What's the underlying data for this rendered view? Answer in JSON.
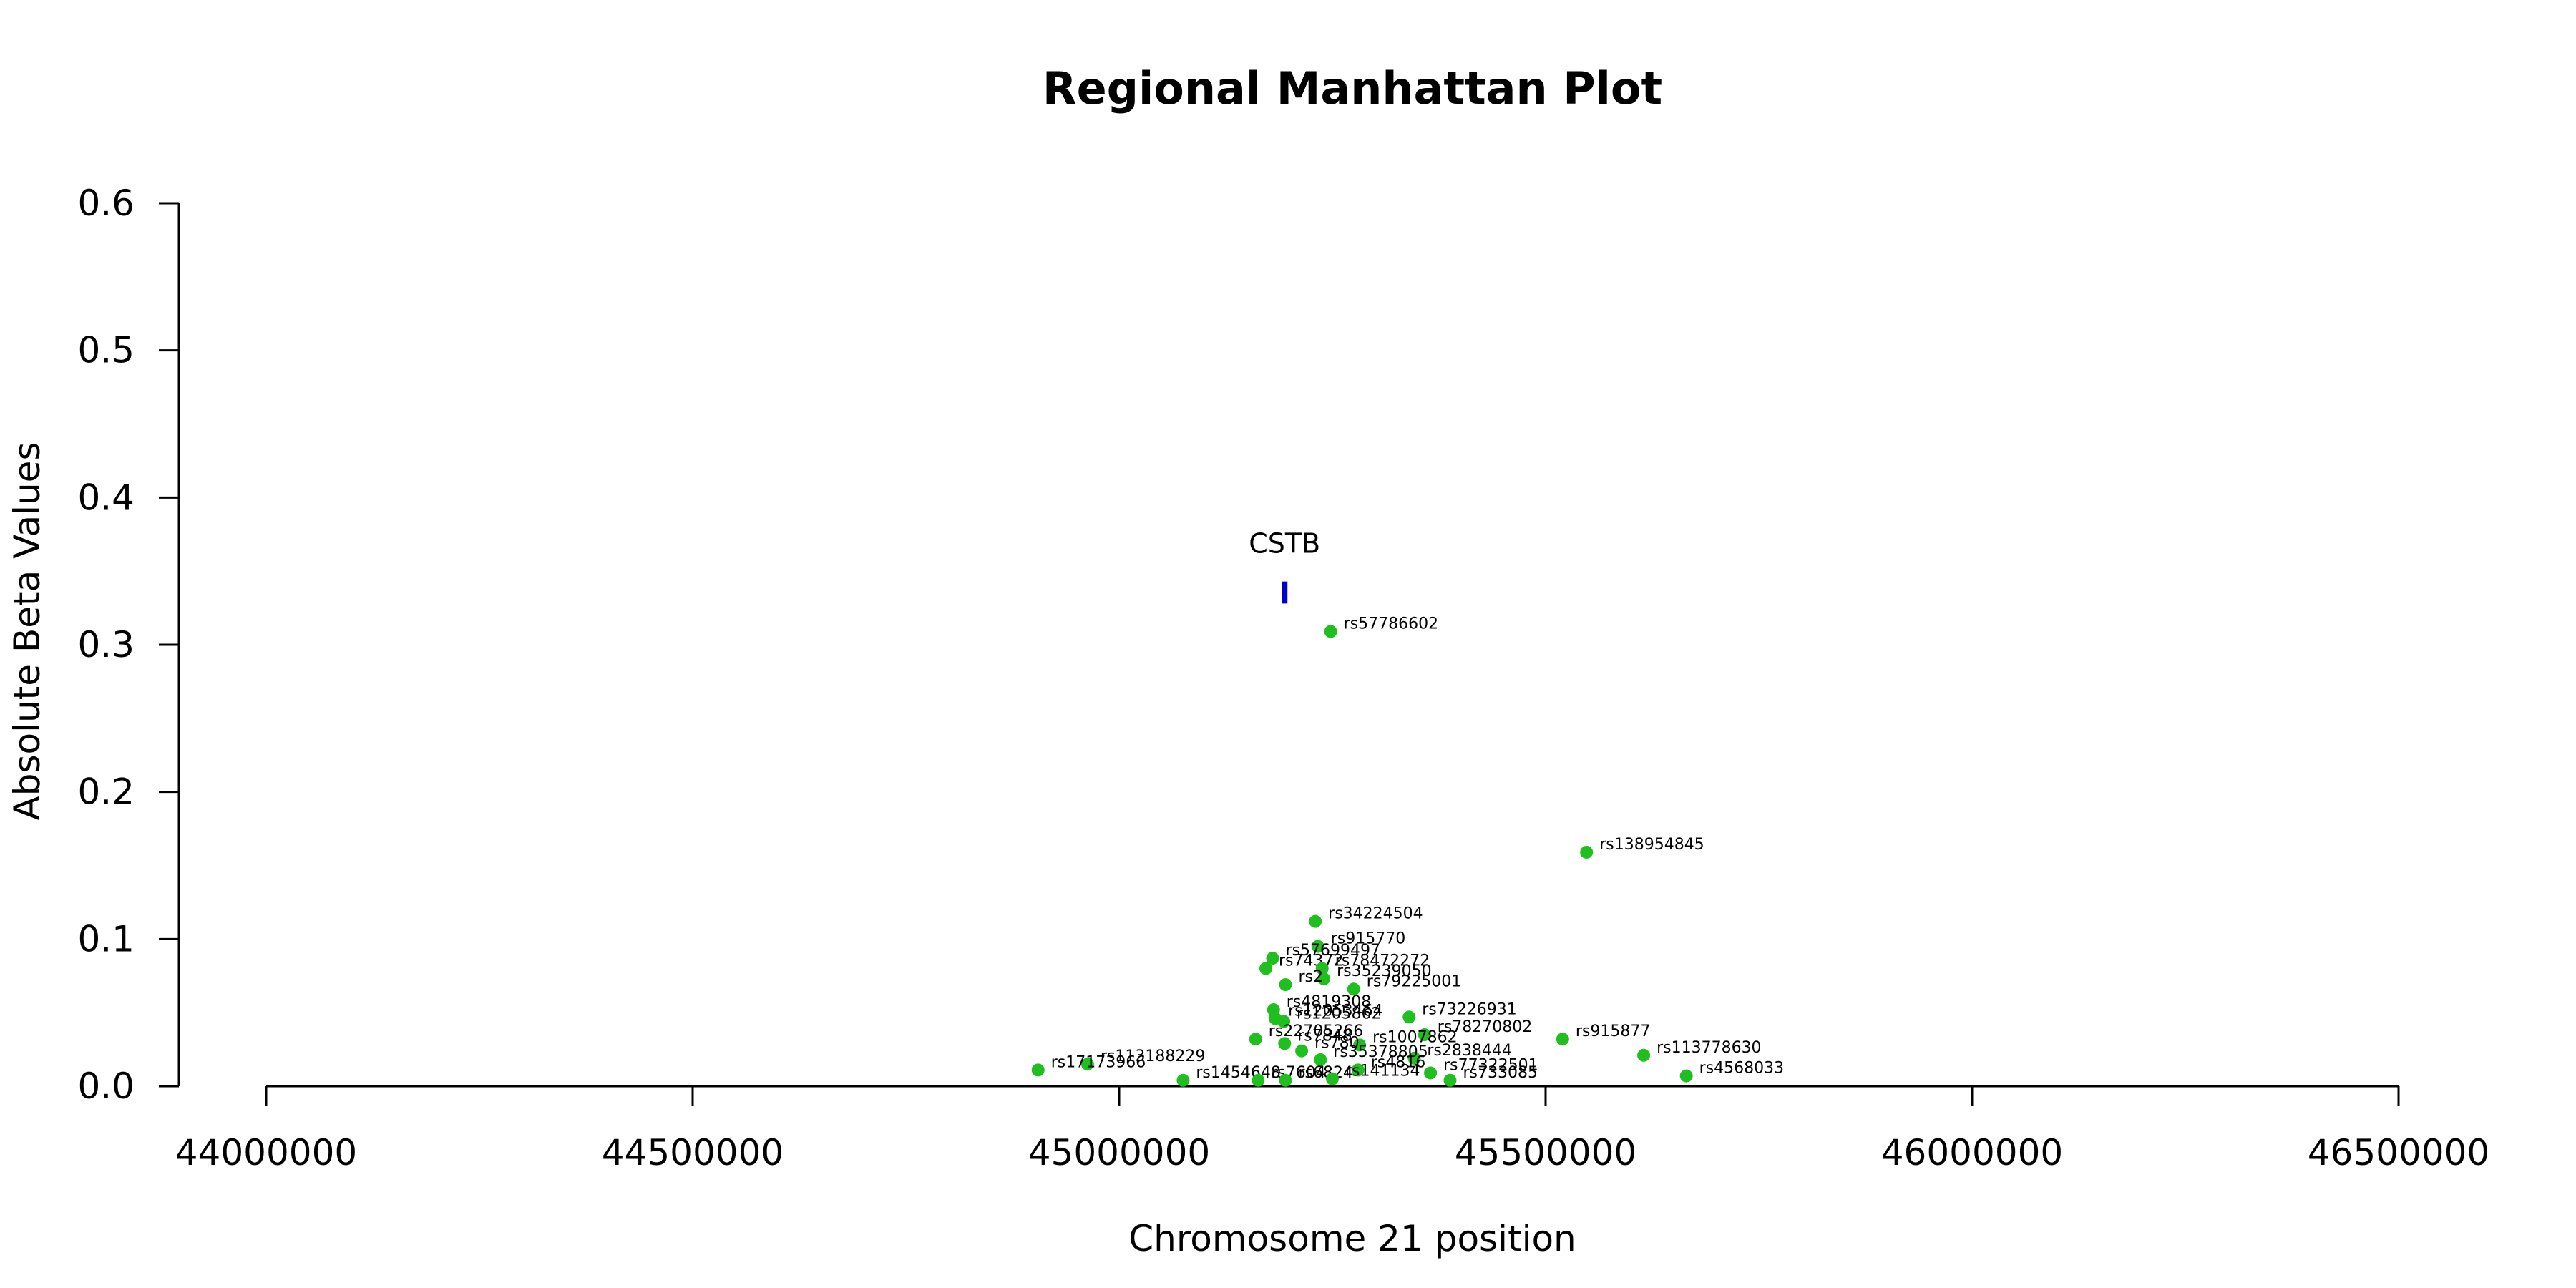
{
  "chart_data": {
    "type": "scatter",
    "title": "Regional Manhattan Plot",
    "xlabel": "Chromosome 21 position",
    "ylabel": "Absolute Beta Values",
    "xlim": [
      44000000,
      46500000
    ],
    "ylim": [
      0,
      0.6
    ],
    "x_ticks": [
      "44000000",
      "44500000",
      "45000000",
      "45500000",
      "46000000",
      "46500000"
    ],
    "y_ticks": [
      "0.0",
      "0.1",
      "0.2",
      "0.3",
      "0.4",
      "0.5",
      "0.6"
    ],
    "point_color": "#1fbf1f",
    "gene_color": "#0000cc",
    "grid": false,
    "gene": {
      "name": "CSTB",
      "position": 45194000,
      "y_bottom": 0.328,
      "y_top": 0.343
    },
    "points": [
      {
        "label": "rs57786602",
        "x": 45248000,
        "y": 0.309
      },
      {
        "label": "rs138954845",
        "x": 45548000,
        "y": 0.159
      },
      {
        "label": "rs34224504",
        "x": 45230000,
        "y": 0.112
      },
      {
        "label": "rs915770",
        "x": 45233000,
        "y": 0.095
      },
      {
        "label": "rs57699497",
        "x": 45180000,
        "y": 0.087
      },
      {
        "label": "rs74372",
        "x": 45172000,
        "y": 0.08
      },
      {
        "label": "rs78472272",
        "x": 45238000,
        "y": 0.08
      },
      {
        "label": "rs35239050",
        "x": 45240000,
        "y": 0.073
      },
      {
        "label": "rs2",
        "x": 45195000,
        "y": 0.069
      },
      {
        "label": "rs79225001",
        "x": 45275000,
        "y": 0.066
      },
      {
        "label": "rs4819308",
        "x": 45181000,
        "y": 0.052
      },
      {
        "label": "rs73226931",
        "x": 45340000,
        "y": 0.047
      },
      {
        "label": "rs12053464",
        "x": 45183000,
        "y": 0.046
      },
      {
        "label": "rs1205862",
        "x": 45193000,
        "y": 0.044
      },
      {
        "label": "rs78270802",
        "x": 45358000,
        "y": 0.035
      },
      {
        "label": "rs915877",
        "x": 45520000,
        "y": 0.032
      },
      {
        "label": "rs22705266",
        "x": 45160000,
        "y": 0.032
      },
      {
        "label": "rs7848",
        "x": 45194000,
        "y": 0.029
      },
      {
        "label": "rs1007862",
        "x": 45282000,
        "y": 0.028
      },
      {
        "label": "rs780",
        "x": 45214000,
        "y": 0.024
      },
      {
        "label": "rs113778630",
        "x": 45615000,
        "y": 0.021
      },
      {
        "label": "rs2838444",
        "x": 45346000,
        "y": 0.019
      },
      {
        "label": "rs35378805",
        "x": 45236000,
        "y": 0.018
      },
      {
        "label": "rs113188229",
        "x": 44963000,
        "y": 0.015
      },
      {
        "label": "rs17173966",
        "x": 44905000,
        "y": 0.011
      },
      {
        "label": "rs4816",
        "x": 45280000,
        "y": 0.011
      },
      {
        "label": "rs77322501",
        "x": 45365000,
        "y": 0.009
      },
      {
        "label": "rs4568033",
        "x": 45665000,
        "y": 0.007
      },
      {
        "label": "rs1454648",
        "x": 45075000,
        "y": 0.004
      },
      {
        "label": "rs7604",
        "x": 45163000,
        "y": 0.004
      },
      {
        "label": "rs6824",
        "x": 45195000,
        "y": 0.004
      },
      {
        "label": "rs141134",
        "x": 45250000,
        "y": 0.005
      },
      {
        "label": "rs733085",
        "x": 45388000,
        "y": 0.004
      }
    ]
  }
}
